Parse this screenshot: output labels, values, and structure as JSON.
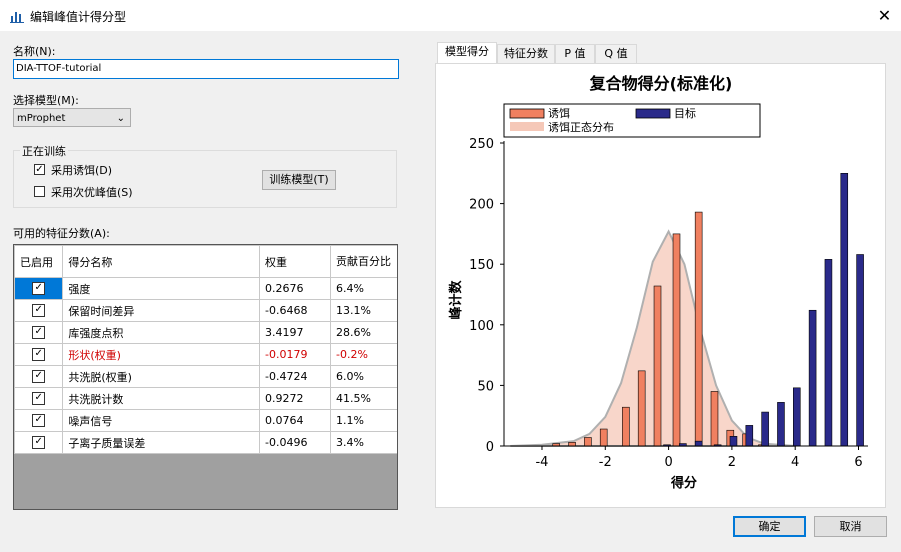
{
  "window": {
    "title": "编辑峰值计得分型",
    "close_label": "✕"
  },
  "name_field": {
    "label": "名称(N):",
    "value": "DIA-TTOF-tutorial"
  },
  "model_field": {
    "label": "选择模型(M):",
    "value": "mProphet"
  },
  "training": {
    "legend": "正在训练",
    "use_decoys": {
      "label": "采用诱饵(D)",
      "checked": true
    },
    "use_second_best": {
      "label": "采用次优峰值(S)",
      "checked": false
    },
    "train_button": "训练模型(T)"
  },
  "features_label": "可用的特征分数(A):",
  "table": {
    "headers": [
      "已启用",
      "得分名称",
      "权重",
      "贡献百分比"
    ],
    "rows": [
      {
        "enabled": true,
        "name": "强度",
        "weight": "0.2676",
        "pct": "6.4%",
        "red": false
      },
      {
        "enabled": true,
        "name": "保留时间差异",
        "weight": "-0.6468",
        "pct": "13.1%",
        "red": false
      },
      {
        "enabled": true,
        "name": "库强度点积",
        "weight": "3.4197",
        "pct": "28.6%",
        "red": false
      },
      {
        "enabled": true,
        "name": "形状(权重)",
        "weight": "-0.0179",
        "pct": "-0.2%",
        "red": true
      },
      {
        "enabled": true,
        "name": "共洗脱(权重)",
        "weight": "-0.4724",
        "pct": "6.0%",
        "red": false
      },
      {
        "enabled": true,
        "name": "共洗脱计数",
        "weight": "0.9272",
        "pct": "41.5%",
        "red": false
      },
      {
        "enabled": true,
        "name": "噪声信号",
        "weight": "0.0764",
        "pct": "1.1%",
        "red": false
      },
      {
        "enabled": true,
        "name": "子离子质量误差",
        "weight": "-0.0496",
        "pct": "3.4%",
        "red": false
      }
    ]
  },
  "tabs": [
    "模型得分",
    "特征分数",
    "P 值",
    "Q 值"
  ],
  "chart_data": {
    "type": "bar",
    "title": "复合物得分(标准化)",
    "xlabel": "得分",
    "ylabel": "峰计数",
    "xlim": [
      -5.2,
      6.3
    ],
    "ylim": [
      0,
      250
    ],
    "xticks": [
      -4,
      -2,
      0,
      2,
      4,
      6
    ],
    "yticks": [
      0,
      50,
      100,
      150,
      200,
      250
    ],
    "legend_position": "top",
    "series": [
      {
        "name": "诱饵",
        "color": "#f08060",
        "x": [
          -3.55,
          -3.05,
          -2.55,
          -2.05,
          -1.35,
          -0.85,
          -0.35,
          0.25,
          0.95,
          1.45,
          1.95,
          2.45,
          2.95
        ],
        "values": [
          2,
          3,
          7,
          14,
          32,
          62,
          132,
          175,
          193,
          45,
          13,
          10,
          1
        ]
      },
      {
        "name": "目标",
        "color": "#2a2a8a",
        "x": [
          -0.05,
          0.45,
          0.95,
          1.55,
          2.05,
          2.55,
          3.05,
          3.55,
          4.05,
          4.55,
          5.05,
          5.55,
          6.05
        ],
        "values": [
          1,
          2,
          4,
          1,
          8,
          17,
          28,
          36,
          48,
          112,
          154,
          225,
          158
        ]
      },
      {
        "name": "诱饵正态分布",
        "color": "#f5c8b8",
        "x": [
          -5.0,
          -4.0,
          -3.0,
          -2.5,
          -2.0,
          -1.5,
          -1.0,
          -0.5,
          0.0,
          0.5,
          1.0,
          1.5,
          2.0,
          2.5,
          3.0,
          4.0
        ],
        "values": [
          0,
          1,
          4,
          10,
          24,
          52,
          98,
          152,
          177,
          150,
          96,
          50,
          21,
          7,
          2,
          0
        ]
      }
    ]
  },
  "buttons": {
    "ok": "确定",
    "cancel": "取消"
  }
}
